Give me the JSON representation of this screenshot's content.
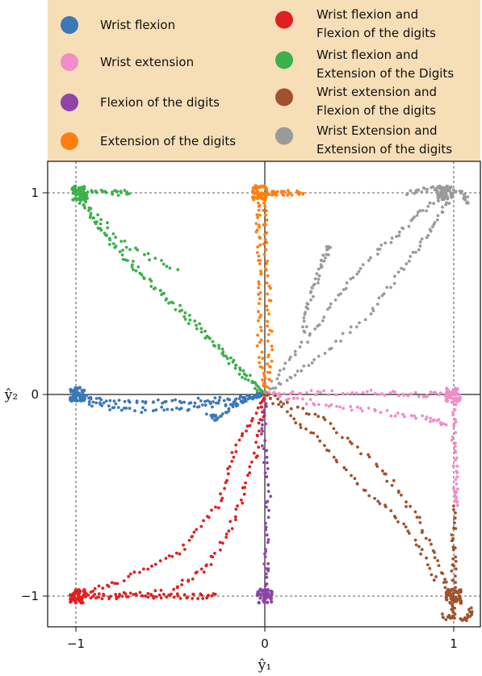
{
  "chart_data": {
    "type": "scatter",
    "title": "",
    "xlabel": "ŷ₁",
    "ylabel": "ŷ₂",
    "xlim": [
      -1.15,
      1.15
    ],
    "ylim": [
      -1.15,
      1.15
    ],
    "xticks": [
      {
        "value": -1,
        "label": "−1"
      },
      {
        "value": 0,
        "label": "0"
      },
      {
        "value": 1,
        "label": "1"
      }
    ],
    "yticks": [
      {
        "value": -1,
        "label": "−1"
      },
      {
        "value": 0,
        "label": "0"
      },
      {
        "value": 1,
        "label": "1"
      }
    ],
    "grid": "dashed lines at −1, 0 (solid), 1",
    "legend_position": "top",
    "legend_background": "#f6deb6",
    "series": [
      {
        "name": "Wrist flexion",
        "color": "#3a78b8",
        "paths": [
          [
            [
              0.0,
              0.0
            ],
            [
              -0.15,
              -0.02
            ],
            [
              -0.35,
              -0.03
            ],
            [
              -0.6,
              -0.04
            ],
            [
              -0.85,
              -0.04
            ],
            [
              -1.0,
              0.0
            ]
          ],
          [
            [
              0.0,
              0.0
            ],
            [
              -0.2,
              -0.05
            ],
            [
              -0.45,
              -0.07
            ],
            [
              -0.75,
              -0.08
            ],
            [
              -0.95,
              -0.04
            ]
          ],
          [
            [
              -0.02,
              0.0
            ],
            [
              -0.12,
              -0.03
            ],
            [
              -0.25,
              -0.12
            ],
            [
              -0.3,
              -0.1
            ]
          ]
        ],
        "cluster": [
          -0.99,
          0.0
        ]
      },
      {
        "name": "Wrist extension",
        "color": "#f28cc8",
        "paths": [
          [
            [
              0.0,
              0.0
            ],
            [
              0.3,
              0.01
            ],
            [
              0.6,
              0.01
            ],
            [
              0.85,
              0.0
            ],
            [
              1.0,
              0.0
            ]
          ],
          [
            [
              0.0,
              0.0
            ],
            [
              0.25,
              -0.04
            ],
            [
              0.55,
              -0.08
            ],
            [
              0.85,
              -0.12
            ],
            [
              0.97,
              -0.15
            ]
          ],
          [
            [
              1.0,
              0.0
            ],
            [
              1.0,
              -0.2
            ],
            [
              1.01,
              -0.45
            ],
            [
              1.02,
              -0.55
            ]
          ]
        ],
        "cluster": [
          1.0,
          0.0
        ]
      },
      {
        "name": "Flexion of the digits",
        "color": "#8e44a8",
        "paths": [
          [
            [
              0.0,
              0.0
            ],
            [
              -0.01,
              -0.2
            ],
            [
              0.02,
              -0.5
            ],
            [
              0.01,
              -0.8
            ],
            [
              0.0,
              -1.0
            ]
          ]
        ],
        "cluster": [
          0.0,
          -1.0
        ]
      },
      {
        "name": "Extension of the digits",
        "color": "#ff7f0e",
        "paths": [
          [
            [
              0.0,
              0.0
            ],
            [
              -0.03,
              0.25
            ],
            [
              -0.02,
              0.55
            ],
            [
              -0.04,
              0.8
            ],
            [
              -0.03,
              1.0
            ]
          ],
          [
            [
              0.0,
              0.0
            ],
            [
              0.03,
              0.2
            ],
            [
              0.02,
              0.5
            ],
            [
              0.0,
              0.8
            ],
            [
              0.0,
              1.0
            ]
          ],
          [
            [
              0.0,
              1.0
            ],
            [
              0.1,
              1.0
            ],
            [
              0.22,
              1.0
            ]
          ]
        ],
        "cluster": [
          -0.03,
          1.0
        ]
      },
      {
        "name": "Wrist flexion and Flexion of the digits",
        "color": "#e02020",
        "paths": [
          [
            [
              0.0,
              0.0
            ],
            [
              -0.15,
              -0.25
            ],
            [
              -0.25,
              -0.55
            ],
            [
              -0.45,
              -0.78
            ],
            [
              -0.75,
              -0.92
            ],
            [
              -1.0,
              -1.0
            ]
          ],
          [
            [
              0.0,
              0.0
            ],
            [
              -0.05,
              -0.3
            ],
            [
              -0.15,
              -0.6
            ],
            [
              -0.3,
              -0.85
            ],
            [
              -0.5,
              -0.98
            ],
            [
              -0.9,
              -1.0
            ]
          ],
          [
            [
              -1.0,
              -1.0
            ],
            [
              -0.8,
              -1.0
            ],
            [
              -0.6,
              -1.0
            ],
            [
              -0.4,
              -1.0
            ],
            [
              -0.25,
              -1.0
            ]
          ]
        ],
        "cluster": [
          -0.99,
          -1.0
        ]
      },
      {
        "name": "Wrist flexion and Extension of the Digits",
        "color": "#3cb04a",
        "paths": [
          [
            [
              0.0,
              0.0
            ],
            [
              -0.15,
              0.12
            ],
            [
              -0.35,
              0.35
            ],
            [
              -0.6,
              0.55
            ],
            [
              -0.85,
              0.8
            ],
            [
              -1.0,
              1.0
            ]
          ],
          [
            [
              0.0,
              0.0
            ],
            [
              -0.2,
              0.2
            ],
            [
              -0.5,
              0.45
            ],
            [
              -0.8,
              0.72
            ],
            [
              -0.98,
              0.98
            ]
          ],
          [
            [
              -1.0,
              1.0
            ],
            [
              -0.85,
              1.0
            ],
            [
              -0.7,
              1.0
            ]
          ],
          [
            [
              -1.0,
              1.0
            ],
            [
              -0.75,
              0.75
            ],
            [
              -0.45,
              0.6
            ]
          ]
        ],
        "cluster": [
          -0.98,
          1.0
        ]
      },
      {
        "name": "Wrist extension and Flexion of the digits",
        "color": "#a0522d",
        "paths": [
          [
            [
              0.0,
              0.0
            ],
            [
              0.3,
              -0.12
            ],
            [
              0.6,
              -0.35
            ],
            [
              0.8,
              -0.6
            ],
            [
              0.95,
              -0.9
            ],
            [
              1.0,
              -1.1
            ]
          ],
          [
            [
              0.0,
              0.0
            ],
            [
              0.25,
              -0.2
            ],
            [
              0.5,
              -0.45
            ],
            [
              0.75,
              -0.65
            ],
            [
              0.92,
              -0.95
            ]
          ],
          [
            [
              1.0,
              -0.55
            ],
            [
              1.0,
              -0.8
            ],
            [
              1.0,
              -1.0
            ],
            [
              1.0,
              -1.1
            ]
          ],
          [
            [
              0.93,
              -1.1
            ],
            [
              1.05,
              -1.12
            ],
            [
              1.1,
              -1.06
            ]
          ]
        ],
        "cluster": [
          1.0,
          -1.0
        ]
      },
      {
        "name": "Wrist Extension and Extension of the digits",
        "color": "#9a9a9a",
        "paths": [
          [
            [
              0.0,
              0.0
            ],
            [
              0.2,
              0.25
            ],
            [
              0.4,
              0.5
            ],
            [
              0.6,
              0.72
            ],
            [
              0.8,
              0.88
            ],
            [
              0.95,
              1.0
            ]
          ],
          [
            [
              0.0,
              0.0
            ],
            [
              0.25,
              0.15
            ],
            [
              0.55,
              0.4
            ],
            [
              0.75,
              0.65
            ],
            [
              0.9,
              0.85
            ],
            [
              1.0,
              1.0
            ]
          ],
          [
            [
              0.2,
              0.3
            ],
            [
              0.25,
              0.5
            ],
            [
              0.3,
              0.65
            ],
            [
              0.35,
              0.75
            ]
          ],
          [
            [
              0.75,
              1.0
            ],
            [
              0.9,
              1.02
            ],
            [
              1.05,
              1.0
            ],
            [
              1.08,
              0.95
            ]
          ]
        ],
        "cluster": [
          0.95,
          1.0
        ]
      }
    ]
  }
}
